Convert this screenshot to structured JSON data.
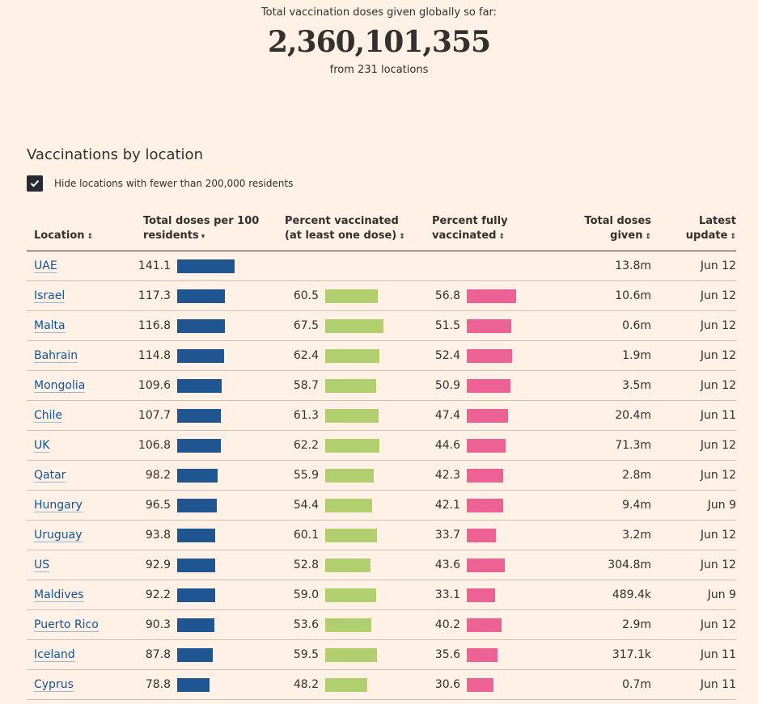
{
  "header": {
    "label": "Total vaccination doses given globally so far:",
    "total": "2,360,101,355",
    "sub": "from 231 locations"
  },
  "section": {
    "title": "Vaccinations by location",
    "hide_label": "Hide locations with fewer than 200,000 residents",
    "hide_checked": true
  },
  "columns": {
    "location": "Location",
    "doses_per_100": "Total doses per 100 residents",
    "pct_one_dose": "Percent vaccinated (at least one dose)",
    "pct_fully": "Percent fully vaccinated",
    "total_doses": "Total doses given",
    "latest_update": "Latest update"
  },
  "colors": {
    "background": "#fff1e5",
    "doses_bar": "#1f5591",
    "one_dose_bar": "#b1cf6f",
    "fully_bar": "#ed6294",
    "link": "#0f5499"
  },
  "rows": [
    {
      "location": "UAE",
      "doses": "141.1",
      "one_dose": "",
      "fully": "",
      "total": "13.8m",
      "updated": "Jun 12"
    },
    {
      "location": "Israel",
      "doses": "117.3",
      "one_dose": "60.5",
      "fully": "56.8",
      "total": "10.6m",
      "updated": "Jun 12"
    },
    {
      "location": "Malta",
      "doses": "116.8",
      "one_dose": "67.5",
      "fully": "51.5",
      "total": "0.6m",
      "updated": "Jun 12"
    },
    {
      "location": "Bahrain",
      "doses": "114.8",
      "one_dose": "62.4",
      "fully": "52.4",
      "total": "1.9m",
      "updated": "Jun 12"
    },
    {
      "location": "Mongolia",
      "doses": "109.6",
      "one_dose": "58.7",
      "fully": "50.9",
      "total": "3.5m",
      "updated": "Jun 12"
    },
    {
      "location": "Chile",
      "doses": "107.7",
      "one_dose": "61.3",
      "fully": "47.4",
      "total": "20.4m",
      "updated": "Jun 11"
    },
    {
      "location": "UK",
      "doses": "106.8",
      "one_dose": "62.2",
      "fully": "44.6",
      "total": "71.3m",
      "updated": "Jun 12"
    },
    {
      "location": "Qatar",
      "doses": "98.2",
      "one_dose": "55.9",
      "fully": "42.3",
      "total": "2.8m",
      "updated": "Jun 12"
    },
    {
      "location": "Hungary",
      "doses": "96.5",
      "one_dose": "54.4",
      "fully": "42.1",
      "total": "9.4m",
      "updated": "Jun 9"
    },
    {
      "location": "Uruguay",
      "doses": "93.8",
      "one_dose": "60.1",
      "fully": "33.7",
      "total": "3.2m",
      "updated": "Jun 12"
    },
    {
      "location": "US",
      "doses": "92.9",
      "one_dose": "52.8",
      "fully": "43.6",
      "total": "304.8m",
      "updated": "Jun 12"
    },
    {
      "location": "Maldives",
      "doses": "92.2",
      "one_dose": "59.0",
      "fully": "33.1",
      "total": "489.4k",
      "updated": "Jun 9"
    },
    {
      "location": "Puerto Rico",
      "doses": "90.3",
      "one_dose": "53.6",
      "fully": "40.2",
      "total": "2.9m",
      "updated": "Jun 12"
    },
    {
      "location": "Iceland",
      "doses": "87.8",
      "one_dose": "59.5",
      "fully": "35.6",
      "total": "317.1k",
      "updated": "Jun 11"
    },
    {
      "location": "Cyprus",
      "doses": "78.8",
      "one_dose": "48.2",
      "fully": "30.6",
      "total": "0.7m",
      "updated": "Jun 11"
    }
  ]
}
